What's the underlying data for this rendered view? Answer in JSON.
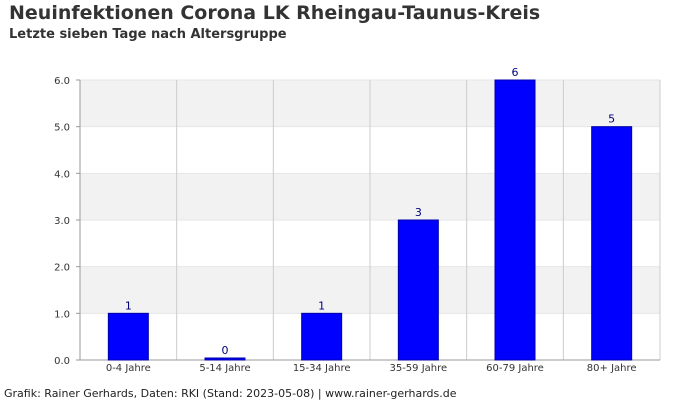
{
  "header": {
    "title": "Neuinfektionen Corona LK Rheingau-Taunus-Kreis",
    "subtitle": "Letzte sieben Tage nach Altersgruppe"
  },
  "footer": {
    "credit": "Grafik: Rainer Gerhards, Daten: RKI (Stand: 2023-05-08) | www.rainer-gerhards.de"
  },
  "chart_data": {
    "type": "bar",
    "title": "Neuinfektionen Corona LK Rheingau-Taunus-Kreis",
    "subtitle": "Letzte sieben Tage nach Altersgruppe",
    "categories": [
      "0-4 Jahre",
      "5-14 Jahre",
      "15-34 Jahre",
      "35-59 Jahre",
      "60-79 Jahre",
      "80+ Jahre"
    ],
    "values": [
      1,
      0,
      1,
      3,
      6,
      5
    ],
    "data_labels": [
      "1",
      "0",
      "1",
      "3",
      "6",
      "5"
    ],
    "ylim": [
      0,
      6
    ],
    "yticks": [
      "0.0",
      "1.0",
      "2.0",
      "3.0",
      "4.0",
      "5.0",
      "6.0"
    ],
    "xlabel": "",
    "ylabel": "",
    "grid": true,
    "legend": false,
    "colors": {
      "bar": "#0000ff",
      "bar_outline": "#0000aa",
      "band": "#f2f2f2",
      "grid": "#cccccc",
      "label": "#000080"
    }
  }
}
